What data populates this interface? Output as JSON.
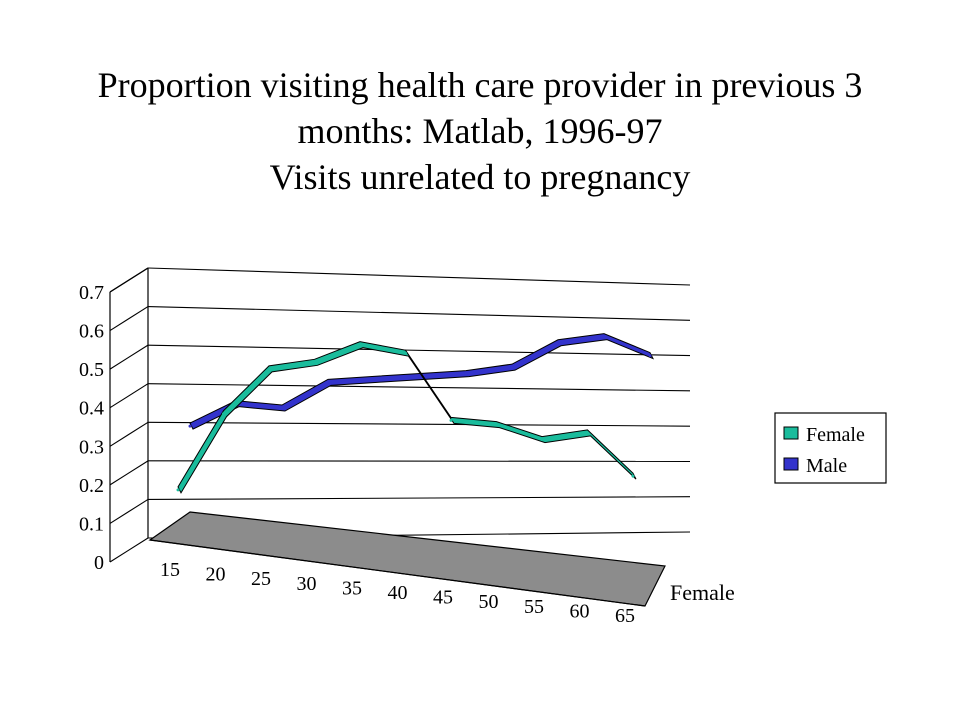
{
  "chart_data": {
    "type": "line",
    "title_lines": [
      "Proportion visiting health care provider in previous 3",
      "months:  Matlab, 1996-97",
      "Visits unrelated to pregnancy"
    ],
    "categories": [
      "15",
      "20",
      "25",
      "30",
      "35",
      "40",
      "45",
      "50",
      "55",
      "60",
      "65"
    ],
    "y_ticks": [
      "0",
      "0.1",
      "0.2",
      "0.3",
      "0.4",
      "0.5",
      "0.6",
      "0.7"
    ],
    "ylim": [
      0,
      0.7
    ],
    "grid": true,
    "three_d": true,
    "legend_position": "right",
    "depth_axis_label": "Female",
    "series": [
      {
        "name": "Female",
        "color": "#1abc9c",
        "values": [
          0.2,
          0.4,
          0.52,
          0.54,
          0.59,
          0.57,
          0.39,
          0.38,
          0.34,
          0.36,
          0.24
        ]
      },
      {
        "name": "Male",
        "color": "#3333cc",
        "values": [
          0.33,
          0.39,
          0.38,
          0.45,
          0.46,
          0.47,
          0.48,
          0.5,
          0.57,
          0.59,
          0.54
        ]
      }
    ]
  }
}
